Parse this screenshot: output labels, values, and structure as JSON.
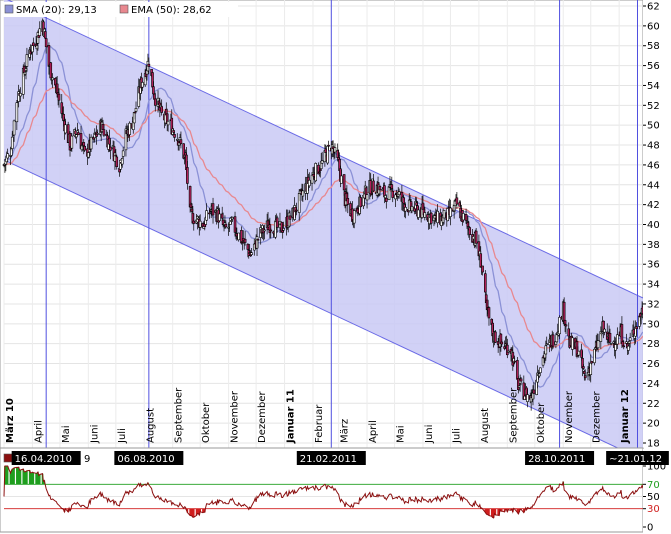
{
  "legend": {
    "sma_label": "SMA (20): 29,13",
    "ema_label": "EMA (50): 28,62",
    "sma_color": "#8b91d6",
    "ema_color": "#e8888f",
    "rsi_label_partial": "R",
    "rsi_value_partial": "9"
  },
  "colors": {
    "channel_fill": "#c9c9f5",
    "channel_line": "#6a6ae6",
    "marker_line": "#5050e0",
    "candle_up": "#ffffff",
    "candle_down": "#b0205a",
    "rsi_line": "#8b0f0f",
    "rsi_over": "#1f9e1f",
    "rsi_under": "#d01f1f"
  },
  "month_labels": [
    {
      "text": "März 10",
      "year": true
    },
    {
      "text": "April",
      "year": false
    },
    {
      "text": "Mai",
      "year": false
    },
    {
      "text": "Juni",
      "year": false
    },
    {
      "text": "Juli",
      "year": false
    },
    {
      "text": "August",
      "year": false
    },
    {
      "text": "September",
      "year": false
    },
    {
      "text": "Oktober",
      "year": false
    },
    {
      "text": "November",
      "year": false
    },
    {
      "text": "Dezember",
      "year": false
    },
    {
      "text": "Januar 11",
      "year": true
    },
    {
      "text": "Februar",
      "year": false
    },
    {
      "text": "März",
      "year": false
    },
    {
      "text": "April",
      "year": false
    },
    {
      "text": "Mai",
      "year": false
    },
    {
      "text": "Juni",
      "year": false
    },
    {
      "text": "Juli",
      "year": false
    },
    {
      "text": "August",
      "year": false
    },
    {
      "text": "September",
      "year": false
    },
    {
      "text": "Oktober",
      "year": false
    },
    {
      "text": "November",
      "year": false
    },
    {
      "text": "Dezember",
      "year": false
    },
    {
      "text": "Januar 12",
      "year": true
    }
  ],
  "chart_data": {
    "type": "candlestick",
    "x_range": [
      "2010-03-01",
      "2012-01-27"
    ],
    "ylim": [
      18,
      62
    ],
    "yticks": [
      18,
      20,
      22,
      24,
      26,
      28,
      30,
      32,
      34,
      36,
      38,
      40,
      42,
      44,
      46,
      48,
      50,
      52,
      54,
      56,
      58,
      60,
      62
    ],
    "grid": true,
    "channel": {
      "upper": [
        {
          "date": "2010-03-01",
          "value": 62.8
        },
        {
          "date": "2012-01-27",
          "value": 32.6
        }
      ],
      "lower": [
        {
          "date": "2010-03-01",
          "value": 46.5
        },
        {
          "date": "2012-01-27",
          "value": 16.3
        }
      ]
    },
    "date_markers": [
      {
        "date": "2010-04-16",
        "label": "16.04.2010"
      },
      {
        "date": "2010-08-06",
        "label": "06.08.2010"
      },
      {
        "date": "2011-02-21",
        "label": "21.02.2011"
      },
      {
        "date": "2011-10-28",
        "label": "28.10.2011"
      },
      {
        "date": "2012-01-21",
        "label": "~21.01.12"
      }
    ],
    "price_path": [
      [
        "2010-03-01",
        46.0
      ],
      [
        "2010-03-08",
        47.5
      ],
      [
        "2010-03-15",
        52.5
      ],
      [
        "2010-03-22",
        55.0
      ],
      [
        "2010-03-29",
        57.5
      ],
      [
        "2010-04-05",
        58.5
      ],
      [
        "2010-04-12",
        60.5
      ],
      [
        "2010-04-19",
        56.0
      ],
      [
        "2010-04-26",
        54.0
      ],
      [
        "2010-05-05",
        50.5
      ],
      [
        "2010-05-12",
        48.0
      ],
      [
        "2010-05-20",
        49.5
      ],
      [
        "2010-05-28",
        47.0
      ],
      [
        "2010-06-07",
        48.5
      ],
      [
        "2010-06-15",
        50.0
      ],
      [
        "2010-06-25",
        48.0
      ],
      [
        "2010-07-05",
        46.0
      ],
      [
        "2010-07-12",
        49.0
      ],
      [
        "2010-07-20",
        50.5
      ],
      [
        "2010-07-28",
        54.0
      ],
      [
        "2010-08-06",
        56.5
      ],
      [
        "2010-08-12",
        53.0
      ],
      [
        "2010-08-20",
        51.0
      ],
      [
        "2010-08-30",
        50.0
      ],
      [
        "2010-09-08",
        48.5
      ],
      [
        "2010-09-15",
        46.5
      ],
      [
        "2010-09-20",
        41.0
      ],
      [
        "2010-09-27",
        40.5
      ],
      [
        "2010-10-05",
        40.0
      ],
      [
        "2010-10-12",
        41.5
      ],
      [
        "2010-10-20",
        41.0
      ],
      [
        "2010-10-28",
        39.5
      ],
      [
        "2010-11-05",
        40.0
      ],
      [
        "2010-11-15",
        38.5
      ],
      [
        "2010-11-25",
        37.0
      ],
      [
        "2010-12-05",
        39.0
      ],
      [
        "2010-12-15",
        40.0
      ],
      [
        "2010-12-28",
        39.5
      ],
      [
        "2011-01-10",
        41.0
      ],
      [
        "2011-01-20",
        43.0
      ],
      [
        "2011-01-31",
        45.0
      ],
      [
        "2011-02-10",
        46.0
      ],
      [
        "2011-02-21",
        48.0
      ],
      [
        "2011-03-01",
        46.0
      ],
      [
        "2011-03-08",
        42.5
      ],
      [
        "2011-03-16",
        41.0
      ],
      [
        "2011-03-24",
        42.0
      ],
      [
        "2011-04-01",
        43.5
      ],
      [
        "2011-04-10",
        44.0
      ],
      [
        "2011-04-20",
        43.0
      ],
      [
        "2011-05-01",
        43.5
      ],
      [
        "2011-05-12",
        42.0
      ],
      [
        "2011-05-25",
        41.5
      ],
      [
        "2011-06-06",
        41.0
      ],
      [
        "2011-06-18",
        40.5
      ],
      [
        "2011-06-30",
        41.0
      ],
      [
        "2011-07-08",
        42.0
      ],
      [
        "2011-07-18",
        40.0
      ],
      [
        "2011-07-28",
        38.5
      ],
      [
        "2011-08-04",
        36.0
      ],
      [
        "2011-08-09",
        31.5
      ],
      [
        "2011-08-16",
        29.0
      ],
      [
        "2011-08-25",
        28.0
      ],
      [
        "2011-09-05",
        27.5
      ],
      [
        "2011-09-12",
        24.0
      ],
      [
        "2011-09-20",
        23.0
      ],
      [
        "2011-09-27",
        22.5
      ],
      [
        "2011-10-05",
        25.5
      ],
      [
        "2011-10-14",
        27.5
      ],
      [
        "2011-10-24",
        29.0
      ],
      [
        "2011-11-01",
        31.5
      ],
      [
        "2011-11-08",
        28.0
      ],
      [
        "2011-11-16",
        27.5
      ],
      [
        "2011-11-25",
        24.5
      ],
      [
        "2011-12-05",
        27.0
      ],
      [
        "2011-12-14",
        29.5
      ],
      [
        "2011-12-23",
        28.0
      ],
      [
        "2012-01-03",
        29.0
      ],
      [
        "2012-01-10",
        27.5
      ],
      [
        "2012-01-18",
        29.5
      ],
      [
        "2012-01-27",
        31.5
      ]
    ],
    "rsi": {
      "ylim": [
        0,
        100
      ],
      "yticks": [
        0,
        30,
        50,
        70,
        100
      ],
      "overbought": 70,
      "oversold": 30
    }
  }
}
